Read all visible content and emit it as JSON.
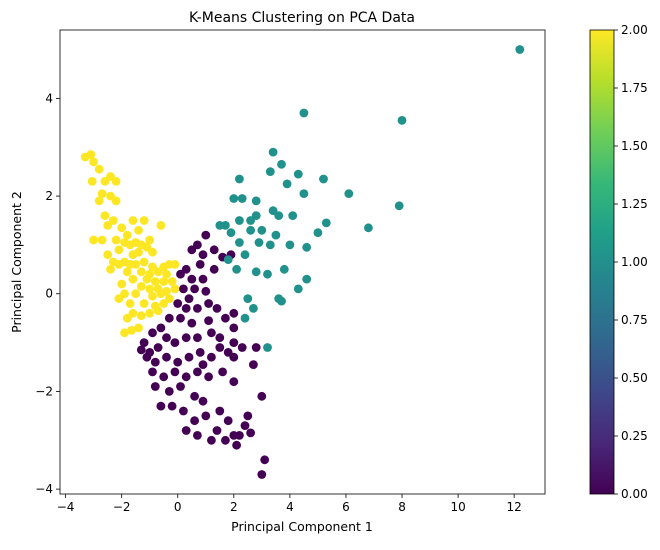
{
  "chart_data": {
    "type": "scatter",
    "title": "K-Means Clustering on PCA Data",
    "xlabel": "Principal Component 1",
    "ylabel": "Principal Component 2",
    "xlim": [
      -4.2,
      13.1
    ],
    "ylim": [
      -4.1,
      5.4
    ],
    "xticks": [
      -4,
      -2,
      0,
      2,
      4,
      6,
      8,
      10,
      12
    ],
    "yticks": [
      -4,
      -2,
      0,
      2,
      4
    ],
    "grid": false,
    "colormap": "viridis",
    "colorbar": {
      "range": [
        0.0,
        2.0
      ],
      "ticks": [
        "0.00",
        "0.25",
        "0.50",
        "0.75",
        "1.00",
        "1.25",
        "1.50",
        "1.75",
        "2.00"
      ]
    },
    "cluster_colors": {
      "0": "#440154",
      "1": "#21918c",
      "2": "#fde725"
    },
    "points": [
      [
        -3.3,
        2.8,
        2
      ],
      [
        -3.1,
        2.85,
        2
      ],
      [
        -3.0,
        2.7,
        2
      ],
      [
        -3.05,
        2.3,
        2
      ],
      [
        -2.8,
        2.55,
        2
      ],
      [
        -2.6,
        2.3,
        2
      ],
      [
        -2.4,
        2.4,
        2
      ],
      [
        -2.2,
        2.3,
        2
      ],
      [
        -2.7,
        2.05,
        2
      ],
      [
        -2.4,
        2.0,
        2
      ],
      [
        -2.2,
        1.9,
        2
      ],
      [
        -2.8,
        1.9,
        2
      ],
      [
        -2.6,
        1.6,
        2
      ],
      [
        -2.5,
        1.4,
        2
      ],
      [
        -2.3,
        1.5,
        2
      ],
      [
        -2.0,
        1.35,
        2
      ],
      [
        -1.6,
        1.5,
        2
      ],
      [
        -1.2,
        1.5,
        2
      ],
      [
        -0.6,
        1.4,
        2
      ],
      [
        -1.4,
        1.3,
        2
      ],
      [
        -1.8,
        1.2,
        2
      ],
      [
        -2.2,
        1.1,
        2
      ],
      [
        -3.0,
        1.1,
        2
      ],
      [
        -2.7,
        1.1,
        2
      ],
      [
        -2.5,
        0.8,
        2
      ],
      [
        -2.1,
        0.9,
        2
      ],
      [
        -1.9,
        1.05,
        2
      ],
      [
        -1.7,
        1.0,
        2
      ],
      [
        -1.5,
        1.05,
        2
      ],
      [
        -1.3,
        1.0,
        2
      ],
      [
        -1.1,
        0.95,
        2
      ],
      [
        -0.9,
        0.85,
        2
      ],
      [
        -1.0,
        1.1,
        2
      ],
      [
        -1.6,
        0.8,
        2
      ],
      [
        -1.4,
        0.85,
        2
      ],
      [
        -2.3,
        0.65,
        2
      ],
      [
        -2.1,
        0.6,
        2
      ],
      [
        -1.9,
        0.65,
        2
      ],
      [
        -1.7,
        0.6,
        2
      ],
      [
        -1.5,
        0.6,
        2
      ],
      [
        -1.2,
        0.65,
        2
      ],
      [
        -0.9,
        0.55,
        2
      ],
      [
        -0.5,
        0.55,
        2
      ],
      [
        -0.3,
        0.6,
        2
      ],
      [
        -0.1,
        0.6,
        2
      ],
      [
        -2.4,
        0.5,
        2
      ],
      [
        -1.8,
        0.45,
        2
      ],
      [
        -1.3,
        0.45,
        2
      ],
      [
        -1.0,
        0.4,
        2
      ],
      [
        -0.7,
        0.45,
        2
      ],
      [
        -0.4,
        0.4,
        2
      ],
      [
        -1.6,
        0.3,
        2
      ],
      [
        -1.1,
        0.3,
        2
      ],
      [
        -0.8,
        0.25,
        2
      ],
      [
        -0.5,
        0.25,
        2
      ],
      [
        -0.2,
        0.25,
        2
      ],
      [
        -2.0,
        0.2,
        2
      ],
      [
        -1.3,
        0.15,
        2
      ],
      [
        -1.0,
        0.1,
        2
      ],
      [
        -0.7,
        0.1,
        2
      ],
      [
        -0.4,
        0.05,
        2
      ],
      [
        -0.1,
        0.1,
        2
      ],
      [
        -1.9,
        0.0,
        2
      ],
      [
        -1.5,
        0.0,
        2
      ],
      [
        -0.9,
        -0.05,
        2
      ],
      [
        -0.6,
        0.0,
        2
      ],
      [
        -0.3,
        -0.1,
        2
      ],
      [
        -2.1,
        -0.1,
        2
      ],
      [
        -1.7,
        -0.2,
        2
      ],
      [
        -1.2,
        -0.2,
        2
      ],
      [
        -0.8,
        -0.25,
        2
      ],
      [
        -0.5,
        -0.2,
        2
      ],
      [
        -1.6,
        -0.4,
        2
      ],
      [
        -1.3,
        -0.45,
        2
      ],
      [
        -1.0,
        -0.4,
        2
      ],
      [
        -0.7,
        -0.35,
        2
      ],
      [
        -1.8,
        -0.5,
        2
      ],
      [
        -1.4,
        -0.7,
        2
      ],
      [
        -1.9,
        -0.8,
        2
      ],
      [
        -1.65,
        -0.75,
        2
      ],
      [
        0.1,
        0.4,
        0
      ],
      [
        0.3,
        0.5,
        0
      ],
      [
        0.5,
        0.9,
        0
      ],
      [
        0.7,
        1.0,
        0
      ],
      [
        1.0,
        1.2,
        0
      ],
      [
        0.9,
        0.8,
        0
      ],
      [
        1.3,
        0.9,
        0
      ],
      [
        1.6,
        0.75,
        0
      ],
      [
        1.9,
        0.8,
        0
      ],
      [
        1.3,
        0.5,
        0
      ],
      [
        0.8,
        0.6,
        0
      ],
      [
        0.5,
        0.3,
        0
      ],
      [
        0.9,
        0.3,
        0
      ],
      [
        0.6,
        0.1,
        0
      ],
      [
        0.2,
        0.1,
        0
      ],
      [
        1.0,
        0.05,
        0
      ],
      [
        0.4,
        -0.1,
        0
      ],
      [
        0.0,
        -0.2,
        0
      ],
      [
        0.3,
        -0.3,
        0
      ],
      [
        0.7,
        -0.3,
        0
      ],
      [
        1.1,
        -0.2,
        0
      ],
      [
        1.4,
        -0.3,
        0
      ],
      [
        2.0,
        -0.4,
        0
      ],
      [
        1.7,
        -0.5,
        0
      ],
      [
        1.1,
        -0.55,
        0
      ],
      [
        0.5,
        -0.6,
        0
      ],
      [
        0.1,
        -0.5,
        0
      ],
      [
        -0.3,
        -0.5,
        0
      ],
      [
        -0.6,
        -0.7,
        0
      ],
      [
        -0.9,
        -0.8,
        0
      ],
      [
        -1.2,
        -1.0,
        0
      ],
      [
        -1.0,
        -1.2,
        0
      ],
      [
        -0.7,
        -1.1,
        0
      ],
      [
        -0.4,
        -0.9,
        0
      ],
      [
        -0.1,
        -1.0,
        0
      ],
      [
        0.3,
        -0.9,
        0
      ],
      [
        0.7,
        -0.9,
        0
      ],
      [
        1.2,
        -0.8,
        0
      ],
      [
        1.5,
        -0.9,
        0
      ],
      [
        2.0,
        -0.7,
        0
      ],
      [
        2.0,
        -1.3,
        0
      ],
      [
        1.8,
        -1.2,
        0
      ],
      [
        1.2,
        -1.3,
        0
      ],
      [
        0.8,
        -1.2,
        0
      ],
      [
        0.4,
        -1.3,
        0
      ],
      [
        0.0,
        -1.4,
        0
      ],
      [
        -0.4,
        -1.3,
        0
      ],
      [
        -0.8,
        -1.4,
        0
      ],
      [
        -1.1,
        -1.3,
        0
      ],
      [
        -1.3,
        -1.15,
        0
      ],
      [
        -0.9,
        -1.6,
        0
      ],
      [
        -0.5,
        -1.7,
        0
      ],
      [
        -0.1,
        -1.6,
        0
      ],
      [
        0.3,
        -1.7,
        0
      ],
      [
        0.7,
        -1.6,
        0
      ],
      [
        1.1,
        -1.7,
        0
      ],
      [
        1.6,
        -1.6,
        0
      ],
      [
        2.0,
        -1.8,
        0
      ],
      [
        -0.8,
        -1.9,
        0
      ],
      [
        -0.3,
        -2.0,
        0
      ],
      [
        0.1,
        -1.9,
        0
      ],
      [
        0.6,
        -2.1,
        0
      ],
      [
        -0.6,
        -2.3,
        0
      ],
      [
        -0.2,
        -2.3,
        0
      ],
      [
        0.2,
        -2.4,
        0
      ],
      [
        0.9,
        -2.2,
        0
      ],
      [
        1.0,
        -2.5,
        0
      ],
      [
        0.6,
        -2.6,
        0
      ],
      [
        0.3,
        -2.8,
        0
      ],
      [
        0.7,
        -2.9,
        0
      ],
      [
        1.5,
        -2.4,
        0
      ],
      [
        1.4,
        -2.8,
        0
      ],
      [
        1.8,
        -2.6,
        0
      ],
      [
        2.0,
        -2.9,
        0
      ],
      [
        1.2,
        -3.0,
        0
      ],
      [
        1.7,
        -3.0,
        0
      ],
      [
        2.1,
        -3.1,
        0
      ],
      [
        2.5,
        -2.5,
        0
      ],
      [
        2.4,
        -2.7,
        0
      ],
      [
        2.2,
        -2.9,
        0
      ],
      [
        2.6,
        -2.85,
        0
      ],
      [
        2.8,
        -1.1,
        0
      ],
      [
        2.7,
        -1.45,
        0
      ],
      [
        2.3,
        -1.1,
        0
      ],
      [
        2.0,
        -1.0,
        0
      ],
      [
        3.0,
        -2.1,
        0
      ],
      [
        3.1,
        -3.4,
        0
      ],
      [
        3.0,
        -3.7,
        0
      ],
      [
        1.5,
        -1.1,
        0
      ],
      [
        0.9,
        -1.45,
        0
      ],
      [
        2.2,
        2.35,
        1
      ],
      [
        2.3,
        1.95,
        1
      ],
      [
        3.4,
        2.9,
        1
      ],
      [
        3.3,
        2.5,
        1
      ],
      [
        3.7,
        2.65,
        1
      ],
      [
        3.9,
        2.25,
        1
      ],
      [
        4.3,
        2.45,
        1
      ],
      [
        4.5,
        3.7,
        1
      ],
      [
        4.5,
        2.05,
        1
      ],
      [
        5.2,
        2.35,
        1
      ],
      [
        6.1,
        2.05,
        1
      ],
      [
        5.0,
        1.25,
        1
      ],
      [
        5.3,
        1.45,
        1
      ],
      [
        4.1,
        1.6,
        1
      ],
      [
        3.6,
        1.6,
        1
      ],
      [
        3.4,
        1.7,
        1
      ],
      [
        2.8,
        1.9,
        1
      ],
      [
        2.8,
        1.6,
        1
      ],
      [
        2.6,
        1.5,
        1
      ],
      [
        2.2,
        1.5,
        1
      ],
      [
        2.0,
        1.95,
        1
      ],
      [
        1.7,
        1.4,
        1
      ],
      [
        1.9,
        1.25,
        1
      ],
      [
        2.2,
        1.05,
        1
      ],
      [
        2.6,
        1.3,
        1
      ],
      [
        3.0,
        1.3,
        1
      ],
      [
        3.5,
        1.2,
        1
      ],
      [
        2.9,
        1.05,
        1
      ],
      [
        3.3,
        1.0,
        1
      ],
      [
        4.0,
        1.0,
        1
      ],
      [
        4.6,
        0.95,
        1
      ],
      [
        2.4,
        0.8,
        1
      ],
      [
        1.8,
        0.7,
        1
      ],
      [
        2.1,
        0.5,
        1
      ],
      [
        2.8,
        0.45,
        1
      ],
      [
        3.2,
        0.4,
        1
      ],
      [
        3.8,
        0.5,
        1
      ],
      [
        4.6,
        0.3,
        1
      ],
      [
        4.3,
        0.1,
        1
      ],
      [
        3.6,
        -0.1,
        1
      ],
      [
        3.7,
        -0.15,
        1
      ],
      [
        2.5,
        -0.1,
        1
      ],
      [
        2.7,
        -0.3,
        1
      ],
      [
        2.4,
        -0.5,
        1
      ],
      [
        3.2,
        -1.1,
        1
      ],
      [
        6.8,
        1.35,
        1
      ],
      [
        7.9,
        1.8,
        1
      ],
      [
        8.0,
        3.55,
        1
      ],
      [
        12.2,
        5.0,
        1
      ],
      [
        1.5,
        1.4,
        1
      ]
    ]
  }
}
